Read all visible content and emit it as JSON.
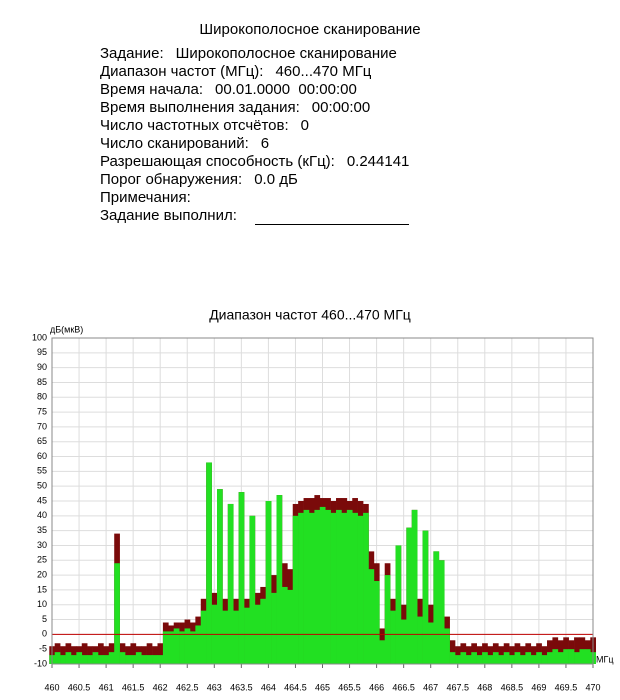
{
  "header": {
    "title": "Широкополосное сканирование"
  },
  "fields": [
    {
      "label": "Задание:",
      "value": "Широкополосное сканирование"
    },
    {
      "label": "Диапазон частот (МГц):",
      "value": "460...470 МГц"
    },
    {
      "label": "Время начала:",
      "value": "00.01.0000  00:00:00"
    },
    {
      "label": "Время выполнения задания:",
      "value": "00:00:00"
    },
    {
      "label": "Число частотных отсчётов:",
      "value": "0"
    },
    {
      "label": "Число сканирований:",
      "value": "6"
    },
    {
      "label": "Разрешающая способность (кГц):",
      "value": "0.244141"
    },
    {
      "label": "Порог обнаружения:",
      "value": "0.0 дБ"
    },
    {
      "label": "Примечания:"
    },
    {
      "label": "Задание выполнил:"
    }
  ],
  "chart_data": {
    "type": "bar",
    "title": "Диапазон частот 460...470 МГц",
    "y_label": "дБ(мкВ)",
    "x_label": "МГц",
    "x": [
      460.0,
      460.1,
      460.2,
      460.3,
      460.4,
      460.5,
      460.6,
      460.7,
      460.8,
      460.9,
      461.0,
      461.1,
      461.2,
      461.3,
      461.4,
      461.5,
      461.6,
      461.7,
      461.8,
      461.9,
      462.0,
      462.1,
      462.2,
      462.3,
      462.4,
      462.5,
      462.6,
      462.7,
      462.8,
      462.9,
      463.0,
      463.1,
      463.2,
      463.3,
      463.4,
      463.5,
      463.6,
      463.7,
      463.8,
      463.9,
      464.0,
      464.1,
      464.2,
      464.3,
      464.4,
      464.5,
      464.6,
      464.7,
      464.8,
      464.9,
      465.0,
      465.1,
      465.2,
      465.3,
      465.4,
      465.5,
      465.6,
      465.7,
      465.8,
      465.9,
      466.0,
      466.1,
      466.2,
      466.3,
      466.4,
      466.5,
      466.6,
      466.7,
      466.8,
      466.9,
      467.0,
      467.1,
      467.2,
      467.3,
      467.4,
      467.5,
      467.6,
      467.7,
      467.8,
      467.9,
      468.0,
      468.1,
      468.2,
      468.3,
      468.4,
      468.5,
      468.6,
      468.7,
      468.8,
      468.9,
      469.0,
      469.1,
      469.2,
      469.3,
      469.4,
      469.5,
      469.6,
      469.7,
      469.8,
      469.9,
      470.0
    ],
    "series": [
      {
        "color": "#7a0a0a",
        "values": [
          -4,
          -3,
          -4,
          -3,
          -4,
          -4,
          -3,
          -4,
          -4,
          -3,
          -4,
          -3,
          34,
          -3,
          -4,
          -3,
          -4,
          -4,
          -3,
          -4,
          -3,
          4,
          3,
          4,
          4,
          5,
          4,
          6,
          12,
          58,
          14,
          49,
          12,
          44,
          12,
          48,
          12,
          40,
          14,
          16,
          45,
          20,
          47,
          24,
          22,
          44,
          45,
          46,
          46,
          47,
          46,
          46,
          45,
          46,
          46,
          45,
          46,
          45,
          44,
          28,
          24,
          2,
          24,
          12,
          30,
          10,
          36,
          42,
          12,
          35,
          10,
          28,
          25,
          6,
          -2,
          -4,
          -3,
          -4,
          -3,
          -4,
          -3,
          -4,
          -3,
          -4,
          -3,
          -4,
          -3,
          -4,
          -3,
          -4,
          -3,
          -4,
          -2,
          -1,
          -2,
          -1,
          -2,
          -1,
          -1,
          -2,
          -1
        ]
      },
      {
        "color": "#22e022",
        "values": [
          -7,
          -6,
          -7,
          -6,
          -7,
          -6,
          -7,
          -7,
          -6,
          -7,
          -7,
          -6,
          24,
          -6,
          -7,
          -7,
          -6,
          -7,
          -7,
          -7,
          -7,
          1,
          1,
          2,
          1,
          2,
          1,
          3,
          8,
          58,
          10,
          49,
          8,
          44,
          8,
          48,
          9,
          40,
          10,
          12,
          45,
          14,
          47,
          16,
          15,
          40,
          41,
          42,
          41,
          42,
          43,
          42,
          41,
          42,
          41,
          42,
          41,
          40,
          41,
          22,
          18,
          -2,
          20,
          8,
          30,
          5,
          36,
          42,
          6,
          35,
          4,
          28,
          25,
          2,
          -6,
          -7,
          -6,
          -7,
          -6,
          -7,
          -6,
          -7,
          -6,
          -7,
          -6,
          -7,
          -6,
          -7,
          -6,
          -7,
          -6,
          -7,
          -6,
          -5,
          -6,
          -5,
          -5,
          -6,
          -5,
          -5,
          -6
        ]
      }
    ],
    "threshold_line": 0,
    "threshold_color": "#c00000",
    "xlim": [
      460,
      470
    ],
    "xticks": [
      460,
      460.5,
      461,
      461.5,
      462,
      462.5,
      463,
      463.5,
      464,
      464.5,
      465,
      465.5,
      466,
      466.5,
      467,
      467.5,
      468,
      468.5,
      469,
      469.5,
      470
    ],
    "ylim": [
      -10,
      100
    ],
    "yticks": [
      -10,
      -5,
      0,
      5,
      10,
      15,
      20,
      25,
      30,
      35,
      40,
      45,
      50,
      55,
      60,
      65,
      70,
      75,
      80,
      85,
      90,
      95,
      100
    ],
    "grid": true
  }
}
